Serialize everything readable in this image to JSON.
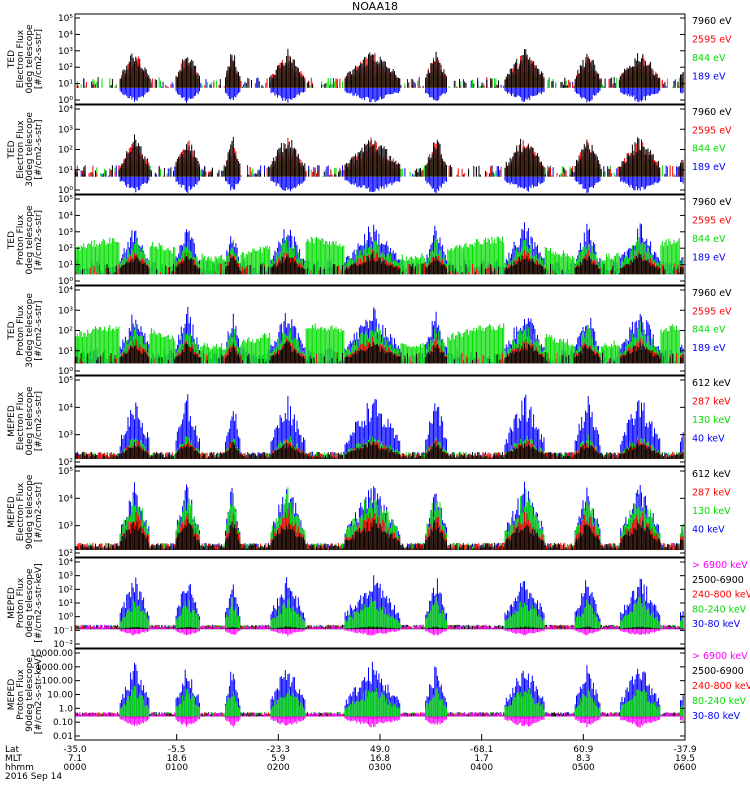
{
  "title": "NOAA18",
  "colors": {
    "black": "#000000",
    "red": "#ff0000",
    "green": "#00dd00",
    "blue": "#0000ff",
    "magenta": "#ff00ff"
  },
  "chart_data": [
    {
      "type": "line",
      "ylabel": [
        "TED",
        "Electron Flux",
        "0deg telescope",
        "[#/cm2-s-str]"
      ],
      "yticks": [
        "10⁰",
        "10¹",
        "10²",
        "10³",
        "10⁴",
        "10⁵"
      ],
      "log": true,
      "ylim": [
        0,
        5
      ],
      "series": [
        {
          "name": "7960 eV",
          "color": "#000000"
        },
        {
          "name": "2595 eV",
          "color": "#ff0000"
        },
        {
          "name": "844 eV",
          "color": "#00dd00"
        },
        {
          "name": "189 eV",
          "color": "#0000ff"
        }
      ],
      "style": "ted-e"
    },
    {
      "type": "line",
      "ylabel": [
        "TED",
        "Electron Flux",
        "30deg telescope",
        "[#/cm2-s-str]"
      ],
      "yticks": [
        "10⁰",
        "10¹",
        "10²",
        "10³",
        "10⁴"
      ],
      "log": true,
      "ylim": [
        0,
        4.6
      ],
      "series": [
        {
          "name": "7960 eV",
          "color": "#000000"
        },
        {
          "name": "2595 eV",
          "color": "#ff0000"
        },
        {
          "name": "844 eV",
          "color": "#00dd00"
        },
        {
          "name": "189 eV",
          "color": "#0000ff"
        }
      ],
      "style": "ted-e"
    },
    {
      "type": "line",
      "ylabel": [
        "TED",
        "Proton Flux",
        "0deg telescope",
        "[#/cm2-s-str]"
      ],
      "yticks": [
        "10⁰",
        "10¹",
        "10²",
        "10³",
        "10⁴",
        "10⁵"
      ],
      "log": true,
      "ylim": [
        0,
        5
      ],
      "series": [
        {
          "name": "7960 eV",
          "color": "#000000"
        },
        {
          "name": "2595 eV",
          "color": "#ff0000"
        },
        {
          "name": "844 eV",
          "color": "#00dd00"
        },
        {
          "name": "189 eV",
          "color": "#0000ff"
        }
      ],
      "style": "ted-p"
    },
    {
      "type": "line",
      "ylabel": [
        "TED",
        "Proton Flux",
        "30deg telescope",
        "[#/cm2-s-str]"
      ],
      "yticks": [
        "10⁰",
        "10¹",
        "10²",
        "10³",
        "10⁴"
      ],
      "log": true,
      "ylim": [
        0,
        4.6
      ],
      "series": [
        {
          "name": "7960 eV",
          "color": "#000000"
        },
        {
          "name": "2595 eV",
          "color": "#ff0000"
        },
        {
          "name": "844 eV",
          "color": "#00dd00"
        },
        {
          "name": "189 eV",
          "color": "#0000ff"
        }
      ],
      "style": "ted-p"
    },
    {
      "type": "line",
      "ylabel": [
        "MEPED",
        "Electron Flux",
        "0deg telescope",
        "[#/cm2-s-str]"
      ],
      "yticks": [
        "10²",
        "10³",
        "10⁴",
        "10⁵"
      ],
      "log": true,
      "ylim": [
        1.7,
        5.5
      ],
      "series": [
        {
          "name": "612 keV",
          "color": "#000000"
        },
        {
          "name": "287 keV",
          "color": "#ff0000"
        },
        {
          "name": "130 keV",
          "color": "#00dd00"
        },
        {
          "name": "40 keV",
          "color": "#0000ff"
        }
      ],
      "style": "mep-e0"
    },
    {
      "type": "line",
      "ylabel": [
        "MEPED",
        "Electron Flux",
        "90deg telescope",
        "[#/cm2-s-str]"
      ],
      "yticks": [
        "10²",
        "10³",
        "10⁴",
        "10⁵"
      ],
      "log": true,
      "ylim": [
        1.7,
        5.5
      ],
      "series": [
        {
          "name": "612 keV",
          "color": "#000000"
        },
        {
          "name": "287 keV",
          "color": "#ff0000"
        },
        {
          "name": "130 keV",
          "color": "#00dd00"
        },
        {
          "name": "40 keV",
          "color": "#0000ff"
        }
      ],
      "style": "mep-e90"
    },
    {
      "type": "line",
      "ylabel": [
        "MEPED",
        "Proton Flux",
        "0deg telescope",
        "[#/cm2-s-str-keV]"
      ],
      "yticks": [
        "10⁻²",
        "10⁻¹",
        "10⁰",
        "10¹",
        "10²",
        "10³",
        "10⁴"
      ],
      "log": true,
      "ylim": [
        -2.2,
        4
      ],
      "series": [
        {
          "name": "> 6900 keV",
          "color": "#ff00ff"
        },
        {
          "name": "2500-6900",
          "color": "#000000"
        },
        {
          "name": "240-800 keV",
          "color": "#ff0000"
        },
        {
          "name": "80-240 keV",
          "color": "#00dd00"
        },
        {
          "name": "30-80 keV",
          "color": "#0000ff"
        }
      ],
      "style": "mep-p"
    },
    {
      "type": "line",
      "ylabel": [
        "MEPED",
        "Proton Flux",
        "90deg telescope",
        "[#/cm2-s-str-keV]"
      ],
      "yticks": [
        "0.01",
        "0.10",
        "1.0",
        "10.00",
        "100.00",
        "1000.00",
        "10000.00"
      ],
      "log": true,
      "ylim": [
        -2.2,
        4
      ],
      "series": [
        {
          "name": "> 6900 keV",
          "color": "#ff00ff"
        },
        {
          "name": "2500-6900",
          "color": "#000000"
        },
        {
          "name": "240-800 keV",
          "color": "#ff0000"
        },
        {
          "name": "80-240 keV",
          "color": "#00dd00"
        },
        {
          "name": "30-80 keV",
          "color": "#0000ff"
        }
      ],
      "style": "mep-p90"
    }
  ],
  "x_axis": {
    "row_labels": [
      "Lat",
      "MLT",
      "hhmm"
    ],
    "ticks": [
      {
        "lat": "-35.0",
        "mlt": "7.1",
        "hhmm": "0000"
      },
      {
        "lat": "-5.5",
        "mlt": "18.6",
        "hhmm": "0100"
      },
      {
        "lat": "-23.3",
        "mlt": "5.9",
        "hhmm": "0200"
      },
      {
        "lat": "49.0",
        "mlt": "16.8",
        "hhmm": "0300"
      },
      {
        "lat": "-68.1",
        "mlt": "1.7",
        "hhmm": "0400"
      },
      {
        "lat": "60.9",
        "mlt": "8.3",
        "hhmm": "0500"
      },
      {
        "lat": "-37.9",
        "mlt": "19.5",
        "hhmm": "0600"
      }
    ],
    "date": "2016 Sep 14"
  }
}
